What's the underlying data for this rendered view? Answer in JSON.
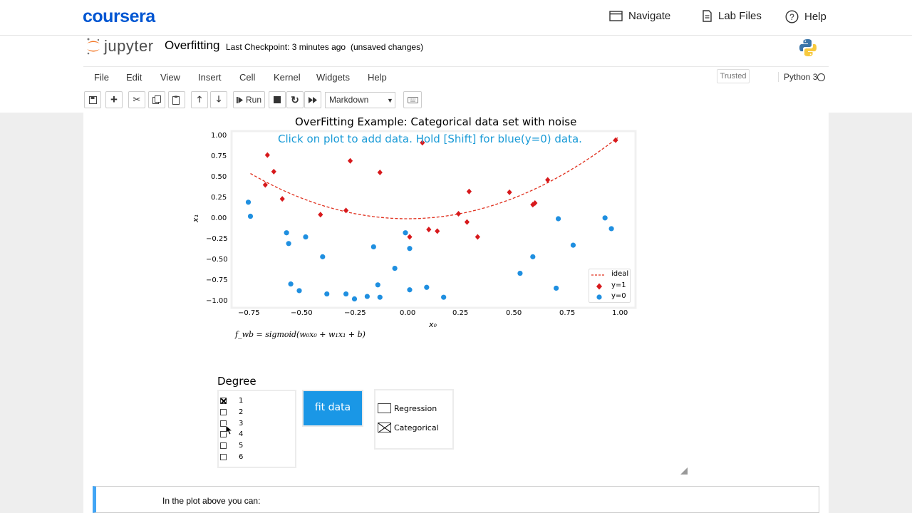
{
  "brand": {
    "name": "coursera"
  },
  "top_nav": [
    {
      "label": "Navigate",
      "icon": "navigate-icon"
    },
    {
      "label": "Lab Files",
      "icon": "file-icon"
    },
    {
      "label": "Help",
      "icon": "help-icon"
    }
  ],
  "notebook": {
    "logo_text": "jupyter",
    "name": "Overfitting",
    "checkpoint": "Last Checkpoint: 3 minutes ago",
    "status": "(unsaved changes)",
    "trusted": "Trusted",
    "kernel": "Python 3"
  },
  "menu": [
    "File",
    "Edit",
    "View",
    "Insert",
    "Cell",
    "Kernel",
    "Widgets",
    "Help"
  ],
  "toolbar": {
    "run_label": "Run",
    "cell_type": "Markdown"
  },
  "plot": {
    "title": "OverFitting Example: Categorical data set with noise",
    "hint": "Click on plot to add data. Hold [Shift] for blue(y=0) data.",
    "xlabel": "x₀",
    "ylabel": "x₁",
    "formula": "f_wb = sigmoid(w₀x₀ + w₁x₁ + b)",
    "legend": {
      "ideal": "ideal",
      "pos": "y=1",
      "neg": "y=0"
    }
  },
  "chart_data": {
    "type": "scatter",
    "title": "OverFitting Example: Categorical data set with noise",
    "xlabel": "x₀",
    "ylabel": "x₁",
    "xlim": [
      -0.85,
      1.05
    ],
    "ylim": [
      -1.05,
      1.05
    ],
    "x_ticks": [
      "−0.75",
      "−0.50",
      "−0.25",
      "0.00",
      "0.25",
      "0.50",
      "0.75",
      "1.00"
    ],
    "y_ticks": [
      "1.00",
      "0.75",
      "0.50",
      "0.25",
      "0.00",
      "−0.25",
      "−0.50",
      "−0.75",
      "−1.00"
    ],
    "legend_position": "lower-right",
    "ideal_curve": {
      "name": "ideal",
      "color": "#e0301e",
      "x_range": [
        -0.74,
        0.99
      ],
      "y_at_0": 0.0,
      "coef": 1.0
    },
    "series": [
      {
        "name": "y=1",
        "color": "#d7191c",
        "marker": "diamond",
        "points": [
          [
            -0.66,
            0.77
          ],
          [
            -0.63,
            0.57
          ],
          [
            -0.67,
            0.41
          ],
          [
            -0.59,
            0.24
          ],
          [
            -0.41,
            0.05
          ],
          [
            -0.29,
            0.1
          ],
          [
            -0.27,
            0.7
          ],
          [
            -0.13,
            0.56
          ],
          [
            0.07,
            0.92
          ],
          [
            0.01,
            -0.22
          ],
          [
            0.1,
            -0.13
          ],
          [
            0.14,
            -0.15
          ],
          [
            0.29,
            0.33
          ],
          [
            0.28,
            -0.04
          ],
          [
            0.33,
            -0.22
          ],
          [
            0.24,
            0.06
          ],
          [
            0.48,
            0.32
          ],
          [
            0.59,
            0.17
          ],
          [
            0.6,
            0.19
          ],
          [
            0.66,
            0.47
          ],
          [
            0.98,
            0.95
          ]
        ]
      },
      {
        "name": "y=0",
        "color": "#1f8fe0",
        "marker": "circle",
        "points": [
          [
            -0.75,
            0.2
          ],
          [
            -0.74,
            0.03
          ],
          [
            -0.57,
            -0.17
          ],
          [
            -0.56,
            -0.3
          ],
          [
            -0.48,
            -0.22
          ],
          [
            -0.4,
            -0.46
          ],
          [
            -0.55,
            -0.79
          ],
          [
            -0.51,
            -0.87
          ],
          [
            -0.38,
            -0.91
          ],
          [
            -0.29,
            -0.91
          ],
          [
            -0.25,
            -0.97
          ],
          [
            -0.19,
            -0.94
          ],
          [
            -0.14,
            -0.8
          ],
          [
            -0.13,
            -0.95
          ],
          [
            -0.16,
            -0.34
          ],
          [
            -0.06,
            -0.6
          ],
          [
            -0.01,
            -0.17
          ],
          [
            0.01,
            -0.36
          ],
          [
            0.01,
            -0.86
          ],
          [
            0.09,
            -0.83
          ],
          [
            0.17,
            -0.95
          ],
          [
            0.53,
            -0.66
          ],
          [
            0.59,
            -0.46
          ],
          [
            0.7,
            -0.84
          ],
          [
            0.71,
            0.0
          ],
          [
            0.78,
            -0.32
          ],
          [
            0.93,
            0.01
          ],
          [
            0.96,
            -0.12
          ]
        ]
      }
    ]
  },
  "widgets": {
    "degree_label": "Degree",
    "degree_options": [
      "1",
      "2",
      "3",
      "4",
      "5",
      "6"
    ],
    "degree_selected": "1",
    "fit_label": "fit data",
    "modes": [
      {
        "label": "Regression",
        "checked": false
      },
      {
        "label": "Categorical",
        "checked": true
      }
    ]
  },
  "markdown_cell": {
    "text": "In the plot above you can:"
  },
  "colors": {
    "brand": "#0056d2",
    "accent": "#1a97e6",
    "hint": "#1a9bd7"
  }
}
